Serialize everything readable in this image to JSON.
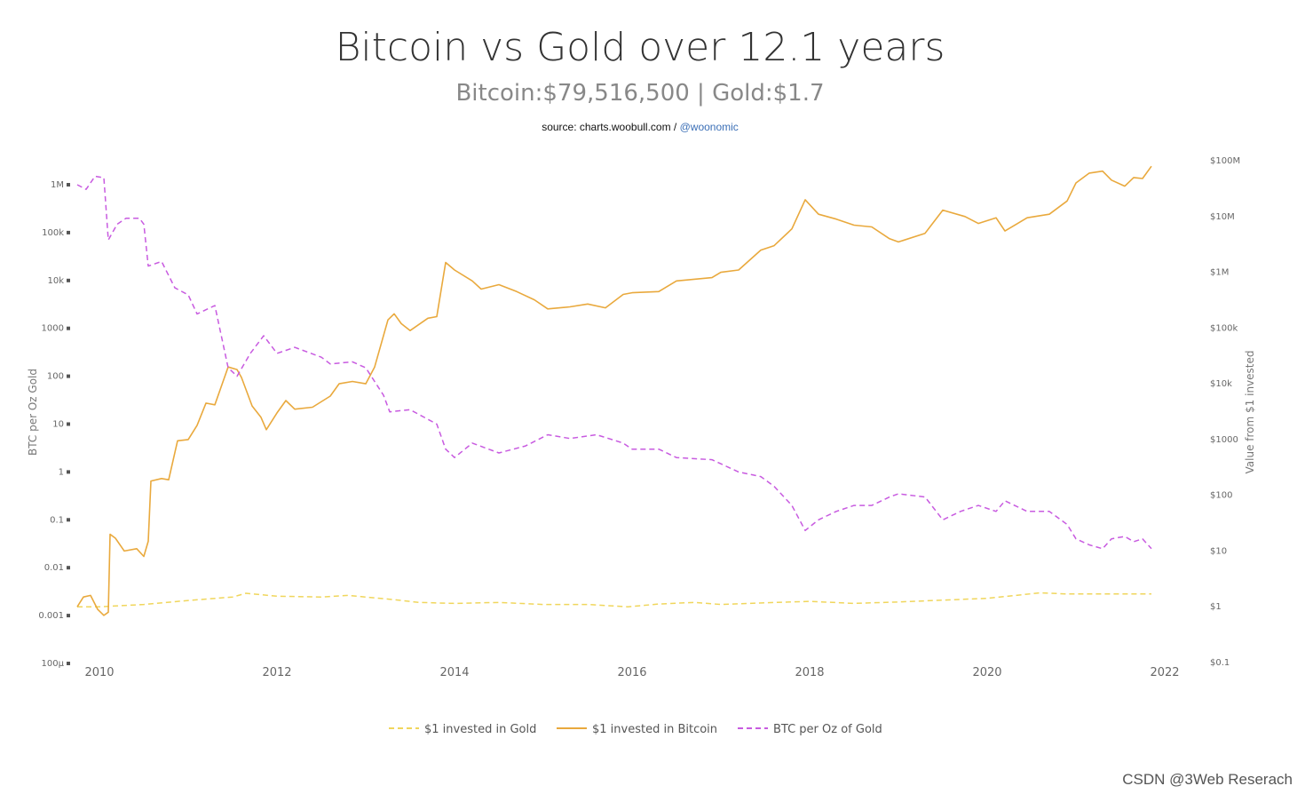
{
  "header": {
    "title": "Bitcoin vs Gold over 12.1 years",
    "subtitle": "Bitcoin:$79,516,500 | Gold:$1.7",
    "source_prefix": "source: charts.woobull.com / ",
    "source_handle": "@woonomic"
  },
  "watermark": "CSDN @3Web Reserach",
  "colors": {
    "gold": "#f0d65c",
    "bitcoin": "#e9a93d",
    "ratio": "#c85be0",
    "axis_text": "#666666"
  },
  "chart_data": {
    "type": "line",
    "title": "Bitcoin vs Gold over 12.1 years",
    "x_range": [
      2009.7,
      2022.0
    ],
    "x_ticks": [
      {
        "value": 2010,
        "label": "2010"
      },
      {
        "value": 2012,
        "label": "2012"
      },
      {
        "value": 2014,
        "label": "2014"
      },
      {
        "value": 2016,
        "label": "2016"
      },
      {
        "value": 2018,
        "label": "2018"
      },
      {
        "value": 2020,
        "label": "2020"
      },
      {
        "value": 2022,
        "label": "2022"
      }
    ],
    "y_left": {
      "label": "BTC per Oz Gold",
      "scale": "log",
      "range": [
        0.0001,
        3000000
      ],
      "ticks": [
        {
          "value": 1000000,
          "label": "1M"
        },
        {
          "value": 100000,
          "label": "100k"
        },
        {
          "value": 10000,
          "label": "10k"
        },
        {
          "value": 1000,
          "label": "1000"
        },
        {
          "value": 100,
          "label": "100"
        },
        {
          "value": 10,
          "label": "10"
        },
        {
          "value": 1,
          "label": "1"
        },
        {
          "value": 0.1,
          "label": "0.1"
        },
        {
          "value": 0.01,
          "label": "0.01"
        },
        {
          "value": 0.001,
          "label": "0.001"
        },
        {
          "value": 0.0001,
          "label": "100µ"
        }
      ]
    },
    "y_right": {
      "label": "Value from $1 invested",
      "scale": "log",
      "range": [
        0.1,
        100000000
      ],
      "ticks": [
        {
          "value": 100000000,
          "label": "$100M"
        },
        {
          "value": 10000000,
          "label": "$10M"
        },
        {
          "value": 1000000,
          "label": "$1M"
        },
        {
          "value": 100000,
          "label": "$100k"
        },
        {
          "value": 10000,
          "label": "$10k"
        },
        {
          "value": 1000,
          "label": "$1000"
        },
        {
          "value": 100,
          "label": "$100"
        },
        {
          "value": 10,
          "label": "$10"
        },
        {
          "value": 1,
          "label": "$1"
        },
        {
          "value": 0.1,
          "label": "$0.1"
        }
      ]
    },
    "series": [
      {
        "name": "$1 invested in Gold",
        "axis": "right",
        "style": "dashed",
        "points": [
          [
            2009.75,
            1.0
          ],
          [
            2010.0,
            1.0
          ],
          [
            2010.5,
            1.1
          ],
          [
            2011.0,
            1.3
          ],
          [
            2011.5,
            1.5
          ],
          [
            2011.65,
            1.75
          ],
          [
            2012.0,
            1.55
          ],
          [
            2012.5,
            1.5
          ],
          [
            2012.8,
            1.6
          ],
          [
            2013.3,
            1.35
          ],
          [
            2013.6,
            1.2
          ],
          [
            2014.0,
            1.15
          ],
          [
            2014.5,
            1.2
          ],
          [
            2015.0,
            1.1
          ],
          [
            2015.5,
            1.1
          ],
          [
            2015.95,
            1.0
          ],
          [
            2016.3,
            1.12
          ],
          [
            2016.7,
            1.2
          ],
          [
            2017.0,
            1.1
          ],
          [
            2017.5,
            1.18
          ],
          [
            2018.0,
            1.25
          ],
          [
            2018.5,
            1.15
          ],
          [
            2019.0,
            1.22
          ],
          [
            2019.5,
            1.32
          ],
          [
            2020.0,
            1.42
          ],
          [
            2020.6,
            1.78
          ],
          [
            2020.9,
            1.7
          ],
          [
            2021.4,
            1.7
          ],
          [
            2021.85,
            1.7
          ]
        ]
      },
      {
        "name": "$1 invested in Bitcoin",
        "axis": "right",
        "style": "solid",
        "points": [
          [
            2009.75,
            1.0
          ],
          [
            2009.82,
            1.5
          ],
          [
            2009.9,
            1.6
          ],
          [
            2009.98,
            0.9
          ],
          [
            2010.05,
            0.7
          ],
          [
            2010.1,
            0.8
          ],
          [
            2010.12,
            20.0
          ],
          [
            2010.18,
            17.0
          ],
          [
            2010.28,
            10.0
          ],
          [
            2010.42,
            11.0
          ],
          [
            2010.5,
            8.0
          ],
          [
            2010.55,
            15.0
          ],
          [
            2010.58,
            180.0
          ],
          [
            2010.7,
            200.0
          ],
          [
            2010.78,
            190.0
          ],
          [
            2010.88,
            950.0
          ],
          [
            2011.0,
            1000.0
          ],
          [
            2011.1,
            1800.0
          ],
          [
            2011.2,
            4500.0
          ],
          [
            2011.3,
            4200.0
          ],
          [
            2011.45,
            20000.0
          ],
          [
            2011.55,
            18000.0
          ],
          [
            2011.6,
            13000.0
          ],
          [
            2011.72,
            4000.0
          ],
          [
            2011.82,
            2500.0
          ],
          [
            2011.88,
            1500.0
          ],
          [
            2012.0,
            3000.0
          ],
          [
            2012.1,
            5000.0
          ],
          [
            2012.2,
            3500.0
          ],
          [
            2012.4,
            3800.0
          ],
          [
            2012.6,
            6000.0
          ],
          [
            2012.7,
            10000.0
          ],
          [
            2012.85,
            11000.0
          ],
          [
            2013.0,
            10000.0
          ],
          [
            2013.1,
            20000.0
          ],
          [
            2013.25,
            140000.0
          ],
          [
            2013.32,
            180000.0
          ],
          [
            2013.4,
            120000.0
          ],
          [
            2013.5,
            90000.0
          ],
          [
            2013.7,
            150000.0
          ],
          [
            2013.8,
            160000.0
          ],
          [
            2013.9,
            1500000.0
          ],
          [
            2014.0,
            1100000.0
          ],
          [
            2014.2,
            700000.0
          ],
          [
            2014.3,
            500000.0
          ],
          [
            2014.5,
            600000.0
          ],
          [
            2014.7,
            450000.0
          ],
          [
            2014.9,
            320000.0
          ],
          [
            2015.05,
            220000.0
          ],
          [
            2015.3,
            240000.0
          ],
          [
            2015.5,
            270000.0
          ],
          [
            2015.7,
            230000.0
          ],
          [
            2015.9,
            400000.0
          ],
          [
            2016.0,
            430000.0
          ],
          [
            2016.3,
            450000.0
          ],
          [
            2016.5,
            700000.0
          ],
          [
            2016.9,
            800000.0
          ],
          [
            2017.0,
            1000000.0
          ],
          [
            2017.2,
            1100000.0
          ],
          [
            2017.45,
            2500000.0
          ],
          [
            2017.6,
            3000000.0
          ],
          [
            2017.8,
            6000000.0
          ],
          [
            2017.95,
            20000000.0
          ],
          [
            2018.1,
            11000000.0
          ],
          [
            2018.3,
            9000000.0
          ],
          [
            2018.5,
            7000000.0
          ],
          [
            2018.7,
            6500000.0
          ],
          [
            2018.9,
            4000000.0
          ],
          [
            2019.0,
            3500000.0
          ],
          [
            2019.3,
            5000000.0
          ],
          [
            2019.5,
            13000000.0
          ],
          [
            2019.75,
            10000000.0
          ],
          [
            2019.9,
            7500000.0
          ],
          [
            2020.1,
            9500000.0
          ],
          [
            2020.2,
            5500000.0
          ],
          [
            2020.45,
            9500000.0
          ],
          [
            2020.7,
            11000000.0
          ],
          [
            2020.9,
            19000000.0
          ],
          [
            2021.0,
            40000000.0
          ],
          [
            2021.15,
            60000000.0
          ],
          [
            2021.3,
            65000000.0
          ],
          [
            2021.4,
            45000000.0
          ],
          [
            2021.55,
            35000000.0
          ],
          [
            2021.65,
            50000000.0
          ],
          [
            2021.75,
            48000000.0
          ],
          [
            2021.85,
            79516500.0
          ]
        ]
      },
      {
        "name": "BTC per Oz of Gold",
        "axis": "left",
        "style": "dashed",
        "points": [
          [
            2009.75,
            1000000.0
          ],
          [
            2009.85,
            800000.0
          ],
          [
            2009.95,
            1500000.0
          ],
          [
            2010.05,
            1400000.0
          ],
          [
            2010.1,
            70000.0
          ],
          [
            2010.2,
            150000.0
          ],
          [
            2010.3,
            200000.0
          ],
          [
            2010.45,
            200000.0
          ],
          [
            2010.5,
            150000.0
          ],
          [
            2010.55,
            20000.0
          ],
          [
            2010.7,
            25000.0
          ],
          [
            2010.85,
            7000.0
          ],
          [
            2011.0,
            5000.0
          ],
          [
            2011.1,
            2000.0
          ],
          [
            2011.3,
            3000.0
          ],
          [
            2011.45,
            150.0
          ],
          [
            2011.55,
            100.0
          ],
          [
            2011.7,
            300.0
          ],
          [
            2011.85,
            700.0
          ],
          [
            2012.0,
            300.0
          ],
          [
            2012.2,
            400.0
          ],
          [
            2012.5,
            250.0
          ],
          [
            2012.6,
            180.0
          ],
          [
            2012.85,
            200.0
          ],
          [
            2013.0,
            150.0
          ],
          [
            2013.2,
            40.0
          ],
          [
            2013.27,
            18.0
          ],
          [
            2013.5,
            20.0
          ],
          [
            2013.8,
            10.0
          ],
          [
            2013.9,
            3.0
          ],
          [
            2014.0,
            2.0
          ],
          [
            2014.2,
            4.0
          ],
          [
            2014.5,
            2.5
          ],
          [
            2014.8,
            3.5
          ],
          [
            2015.05,
            6.0
          ],
          [
            2015.3,
            5.0
          ],
          [
            2015.6,
            6.0
          ],
          [
            2015.9,
            4.0
          ],
          [
            2016.0,
            3.0
          ],
          [
            2016.3,
            3.0
          ],
          [
            2016.5,
            2.0
          ],
          [
            2016.9,
            1.8
          ],
          [
            2017.2,
            1.0
          ],
          [
            2017.45,
            0.8
          ],
          [
            2017.6,
            0.5
          ],
          [
            2017.8,
            0.2
          ],
          [
            2017.95,
            0.06
          ],
          [
            2018.1,
            0.1
          ],
          [
            2018.3,
            0.15
          ],
          [
            2018.5,
            0.2
          ],
          [
            2018.7,
            0.2
          ],
          [
            2018.9,
            0.3
          ],
          [
            2019.0,
            0.35
          ],
          [
            2019.3,
            0.3
          ],
          [
            2019.5,
            0.1
          ],
          [
            2019.7,
            0.15
          ],
          [
            2019.9,
            0.2
          ],
          [
            2020.1,
            0.15
          ],
          [
            2020.2,
            0.25
          ],
          [
            2020.45,
            0.15
          ],
          [
            2020.7,
            0.15
          ],
          [
            2020.9,
            0.08
          ],
          [
            2021.0,
            0.04
          ],
          [
            2021.15,
            0.03
          ],
          [
            2021.3,
            0.025
          ],
          [
            2021.4,
            0.04
          ],
          [
            2021.55,
            0.045
          ],
          [
            2021.65,
            0.035
          ],
          [
            2021.75,
            0.04
          ],
          [
            2021.85,
            0.025
          ]
        ]
      }
    ],
    "legend": {
      "position": "bottom-center",
      "entries": [
        "$1 invested in Gold",
        "$1 invested in Bitcoin",
        "BTC per Oz of Gold"
      ]
    }
  }
}
